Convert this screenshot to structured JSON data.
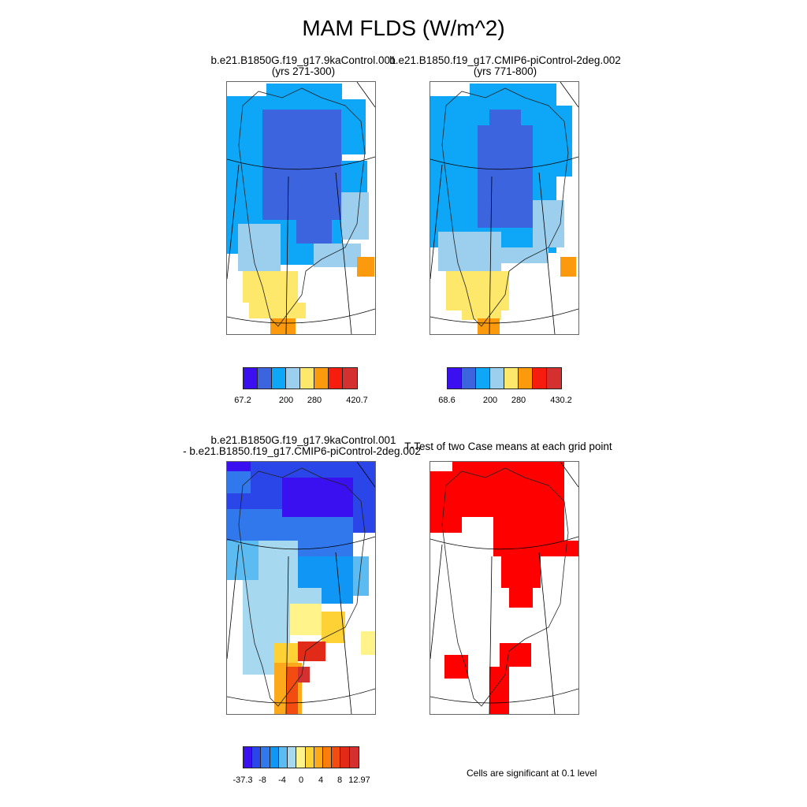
{
  "title": "MAM FLDS (W/m^2)",
  "panels": {
    "top_left": {
      "line1": "b.e21.B1850G.f19_g17.9kaControl.001",
      "line2": "(yrs 271-300)"
    },
    "top_right": {
      "line1": "b.e21.B1850.f19_g17.CMIP6-piControl-2deg.002",
      "line2": "(yrs 771-800)"
    },
    "bottom_left": {
      "line1": "b.e21.B1850G.f19_g17.9kaControl.001",
      "line2": "- b.e21.B1850.f19_g17.CMIP6-piControl-2deg.002"
    },
    "bottom_right": {
      "line1": "T-Test of two Case means at each grid point"
    }
  },
  "colorbars": {
    "cb1": {
      "colors": [
        "#3a10f0",
        "#3c64df",
        "#0ea6f6",
        "#9ccfee",
        "#fde86b",
        "#fa9a0c",
        "#f71d0e",
        "#d53030"
      ],
      "labels": [
        "67.2",
        "200",
        "280",
        "420.7"
      ]
    },
    "cb2": {
      "colors": [
        "#3a10f0",
        "#3c64df",
        "#0ea6f6",
        "#9ccfee",
        "#fde86b",
        "#fa9a0c",
        "#f71d0e",
        "#d53030"
      ],
      "labels": [
        "68.6",
        "200",
        "280",
        "430.2"
      ]
    },
    "cb3": {
      "colors": [
        "#3a10f0",
        "#2a45e8",
        "#3078ec",
        "#1096f4",
        "#5cbbf0",
        "#a6d8f0",
        "#fff38a",
        "#fed235",
        "#fca91c",
        "#fb7d0c",
        "#f34c11",
        "#e12a17",
        "#d53030"
      ],
      "labels": [
        "-37.3",
        "-8",
        "-4",
        "0",
        "4",
        "8",
        "12.97"
      ]
    }
  },
  "footnote": "Cells are significant at 0.1 level"
}
